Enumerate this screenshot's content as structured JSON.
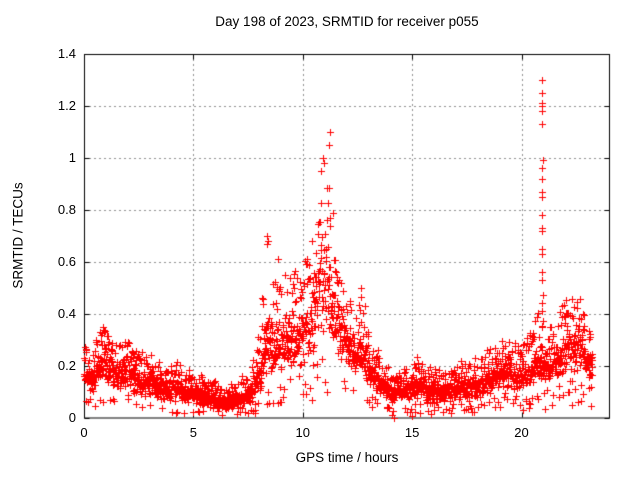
{
  "chart_data": {
    "type": "scatter",
    "title": "Day 198 of 2023, SRMTID for receiver p055",
    "xlabel": "GPS time / hours",
    "ylabel": "SRMTID / TECUs",
    "xlim": [
      0,
      24
    ],
    "ylim": [
      0,
      1.4
    ],
    "xticks": [
      {
        "v": 0,
        "label": "0"
      },
      {
        "v": 5,
        "label": "5"
      },
      {
        "v": 10,
        "label": "10"
      },
      {
        "v": 15,
        "label": "15"
      },
      {
        "v": 20,
        "label": "20"
      }
    ],
    "yticks": [
      {
        "v": 0,
        "label": "0"
      },
      {
        "v": 0.2,
        "label": "0.2"
      },
      {
        "v": 0.4,
        "label": "0.4"
      },
      {
        "v": 0.6,
        "label": "0.6"
      },
      {
        "v": 0.8,
        "label": "0.8"
      },
      {
        "v": 1,
        "label": "1"
      },
      {
        "v": 1.2,
        "label": "1.2"
      },
      {
        "v": 1.4,
        "label": "1.4"
      }
    ],
    "grid": {
      "on": true,
      "color": "#909090",
      "dash": [
        2,
        3
      ]
    },
    "frame_color": "#000000",
    "marker": {
      "shape": "plus",
      "color": "#ff0000",
      "size": 7
    },
    "series_name": "SRMTID",
    "x_start": 0.0,
    "x_end": 23.25,
    "points_per_hour": 110,
    "seed": 1234,
    "envelope_format": [
      "x_hours",
      "band_low",
      "band_high",
      "band_max"
    ],
    "envelope": [
      [
        0.0,
        0.1,
        0.24,
        0.28
      ],
      [
        0.3,
        0.08,
        0.2,
        0.25
      ],
      [
        0.6,
        0.1,
        0.25,
        0.32
      ],
      [
        0.9,
        0.14,
        0.32,
        0.37
      ],
      [
        1.1,
        0.12,
        0.28,
        0.34
      ],
      [
        1.35,
        0.1,
        0.24,
        0.3
      ],
      [
        1.6,
        0.1,
        0.26,
        0.32
      ],
      [
        1.8,
        0.12,
        0.28,
        0.35
      ],
      [
        2.05,
        0.1,
        0.26,
        0.31
      ],
      [
        2.3,
        0.08,
        0.22,
        0.28
      ],
      [
        2.6,
        0.08,
        0.2,
        0.26
      ],
      [
        2.9,
        0.07,
        0.18,
        0.24
      ],
      [
        3.2,
        0.07,
        0.19,
        0.26
      ],
      [
        3.5,
        0.06,
        0.16,
        0.21
      ],
      [
        3.8,
        0.05,
        0.15,
        0.2
      ],
      [
        4.1,
        0.06,
        0.16,
        0.23
      ],
      [
        4.4,
        0.05,
        0.15,
        0.21
      ],
      [
        4.7,
        0.05,
        0.14,
        0.19
      ],
      [
        5.0,
        0.05,
        0.14,
        0.19
      ],
      [
        5.3,
        0.04,
        0.12,
        0.17
      ],
      [
        5.6,
        0.04,
        0.12,
        0.16
      ],
      [
        5.9,
        0.03,
        0.11,
        0.15
      ],
      [
        6.2,
        0.03,
        0.1,
        0.14
      ],
      [
        6.5,
        0.02,
        0.09,
        0.13
      ],
      [
        6.8,
        0.03,
        0.1,
        0.14
      ],
      [
        7.1,
        0.03,
        0.1,
        0.15
      ],
      [
        7.4,
        0.04,
        0.12,
        0.17
      ],
      [
        7.7,
        0.05,
        0.15,
        0.22
      ],
      [
        8.0,
        0.08,
        0.22,
        0.35
      ],
      [
        8.2,
        0.12,
        0.35,
        0.55
      ],
      [
        8.4,
        0.15,
        0.5,
        0.7
      ],
      [
        8.6,
        0.14,
        0.38,
        0.52
      ],
      [
        8.85,
        0.15,
        0.4,
        0.61
      ],
      [
        9.1,
        0.16,
        0.42,
        0.58
      ],
      [
        9.35,
        0.17,
        0.42,
        0.55
      ],
      [
        9.6,
        0.18,
        0.44,
        0.58
      ],
      [
        9.85,
        0.18,
        0.42,
        0.55
      ],
      [
        10.1,
        0.2,
        0.48,
        0.63
      ],
      [
        10.35,
        0.22,
        0.52,
        0.68
      ],
      [
        10.6,
        0.25,
        0.62,
        0.82
      ],
      [
        10.85,
        0.28,
        0.78,
        1.0
      ],
      [
        11.05,
        0.3,
        0.8,
        1.05
      ],
      [
        11.25,
        0.28,
        0.65,
        0.95
      ],
      [
        11.45,
        0.25,
        0.52,
        0.7
      ],
      [
        11.7,
        0.22,
        0.46,
        0.58
      ],
      [
        11.95,
        0.2,
        0.4,
        0.52
      ],
      [
        12.2,
        0.16,
        0.34,
        0.44
      ],
      [
        12.45,
        0.15,
        0.34,
        0.45
      ],
      [
        12.7,
        0.15,
        0.36,
        0.5
      ],
      [
        12.95,
        0.12,
        0.28,
        0.38
      ],
      [
        13.2,
        0.1,
        0.22,
        0.3
      ],
      [
        13.5,
        0.08,
        0.18,
        0.25
      ],
      [
        13.8,
        0.06,
        0.15,
        0.21
      ],
      [
        14.1,
        0.05,
        0.13,
        0.18
      ],
      [
        14.4,
        0.05,
        0.13,
        0.18
      ],
      [
        14.7,
        0.06,
        0.15,
        0.2
      ],
      [
        15.0,
        0.07,
        0.17,
        0.24
      ],
      [
        15.25,
        0.07,
        0.18,
        0.26
      ],
      [
        15.5,
        0.06,
        0.16,
        0.22
      ],
      [
        15.8,
        0.05,
        0.15,
        0.2
      ],
      [
        16.1,
        0.05,
        0.14,
        0.19
      ],
      [
        16.4,
        0.05,
        0.14,
        0.19
      ],
      [
        16.7,
        0.06,
        0.15,
        0.2
      ],
      [
        17.0,
        0.06,
        0.16,
        0.21
      ],
      [
        17.3,
        0.07,
        0.17,
        0.23
      ],
      [
        17.6,
        0.07,
        0.18,
        0.25
      ],
      [
        17.9,
        0.07,
        0.18,
        0.24
      ],
      [
        18.2,
        0.08,
        0.19,
        0.25
      ],
      [
        18.5,
        0.08,
        0.2,
        0.27
      ],
      [
        18.8,
        0.09,
        0.21,
        0.28
      ],
      [
        19.1,
        0.1,
        0.24,
        0.3
      ],
      [
        19.35,
        0.11,
        0.26,
        0.31
      ],
      [
        19.6,
        0.1,
        0.24,
        0.29
      ],
      [
        19.85,
        0.09,
        0.22,
        0.28
      ],
      [
        20.1,
        0.1,
        0.23,
        0.3
      ],
      [
        20.35,
        0.1,
        0.26,
        0.34
      ],
      [
        20.6,
        0.11,
        0.28,
        0.38
      ],
      [
        20.85,
        0.12,
        0.3,
        0.42
      ],
      [
        21.1,
        0.12,
        0.28,
        0.35
      ],
      [
        21.35,
        0.12,
        0.29,
        0.35
      ],
      [
        21.6,
        0.13,
        0.31,
        0.38
      ],
      [
        21.85,
        0.15,
        0.35,
        0.44
      ],
      [
        22.1,
        0.16,
        0.38,
        0.47
      ],
      [
        22.35,
        0.16,
        0.38,
        0.46
      ],
      [
        22.6,
        0.18,
        0.4,
        0.48
      ],
      [
        22.85,
        0.16,
        0.35,
        0.44
      ],
      [
        23.05,
        0.14,
        0.3,
        0.38
      ],
      [
        23.25,
        0.15,
        0.28,
        0.33
      ]
    ],
    "outlier_points": [
      [
        20.93,
        1.3
      ],
      [
        20.93,
        1.25
      ],
      [
        20.94,
        1.21
      ],
      [
        20.92,
        1.2
      ],
      [
        20.95,
        1.18
      ],
      [
        20.95,
        1.13
      ],
      [
        20.96,
        0.99
      ],
      [
        20.93,
        0.96
      ],
      [
        20.93,
        0.92
      ],
      [
        20.94,
        0.87
      ],
      [
        20.95,
        0.85
      ],
      [
        20.94,
        0.78
      ],
      [
        20.95,
        0.73
      ],
      [
        20.93,
        0.72
      ],
      [
        20.94,
        0.65
      ],
      [
        20.93,
        0.63
      ],
      [
        20.95,
        0.56
      ],
      [
        20.94,
        0.53
      ],
      [
        20.96,
        0.47
      ],
      [
        20.93,
        0.44
      ],
      [
        20.95,
        0.41
      ],
      [
        20.96,
        0.37
      ],
      [
        20.94,
        0.35
      ],
      [
        11.23,
        1.1
      ],
      [
        11.22,
        1.05
      ],
      [
        10.92,
        1.0
      ],
      [
        10.95,
        0.98
      ],
      [
        8.38,
        0.7
      ],
      [
        8.4,
        0.68
      ],
      [
        8.37,
        0.67
      ],
      [
        8.85,
        0.61
      ],
      [
        12.68,
        0.5
      ],
      [
        14.1,
        0.01
      ],
      [
        14.17,
        0.0
      ],
      [
        15.0,
        0.005
      ]
    ]
  }
}
